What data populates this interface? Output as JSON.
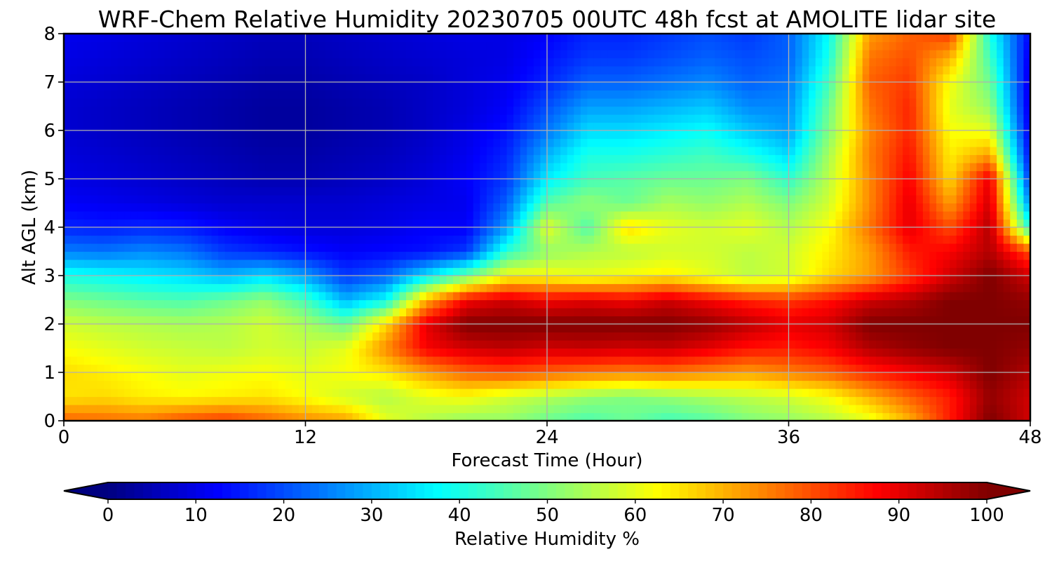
{
  "chart_data": {
    "type": "heatmap",
    "title": "WRF-Chem Relative Humidity 20230705 00UTC 48h fcst at AMOLITE lidar site",
    "xlabel": "Forecast Time (Hour)",
    "ylabel": "Alt AGL (km)",
    "xlim": [
      0,
      48
    ],
    "ylim": [
      0,
      8
    ],
    "x_ticks": [
      0,
      12,
      24,
      36,
      48
    ],
    "y_ticks": [
      0,
      1,
      2,
      3,
      4,
      5,
      6,
      7,
      8
    ],
    "grid": true,
    "x": [
      0,
      2,
      4,
      6,
      8,
      10,
      12,
      14,
      16,
      18,
      20,
      22,
      24,
      26,
      28,
      30,
      32,
      34,
      36,
      38,
      40,
      42,
      44,
      46,
      48
    ],
    "y": [
      0,
      0.5,
      1,
      1.5,
      2,
      2.5,
      3,
      3.5,
      4,
      4.5,
      5,
      5.5,
      6,
      6.5,
      7,
      7.5,
      8
    ],
    "z": [
      [
        78,
        77,
        76,
        80,
        82,
        78,
        74,
        72,
        60,
        55,
        52,
        52,
        48,
        45,
        48,
        44,
        46,
        50,
        52,
        55,
        60,
        70,
        85,
        100,
        92
      ],
      [
        65,
        66,
        64,
        63,
        64,
        65,
        62,
        58,
        55,
        60,
        62,
        58,
        55,
        52,
        50,
        52,
        54,
        56,
        58,
        62,
        70,
        78,
        85,
        98,
        92
      ],
      [
        66,
        64,
        62,
        60,
        61,
        62,
        60,
        62,
        65,
        72,
        78,
        80,
        78,
        76,
        75,
        76,
        74,
        72,
        75,
        78,
        84,
        88,
        92,
        100,
        95
      ],
      [
        62,
        60,
        58,
        57,
        56,
        58,
        57,
        60,
        74,
        88,
        92,
        94,
        92,
        93,
        92,
        93,
        90,
        86,
        85,
        88,
        95,
        98,
        100,
        100,
        98
      ],
      [
        58,
        56,
        55,
        54,
        55,
        58,
        54,
        48,
        66,
        90,
        100,
        100,
        100,
        100,
        100,
        100,
        98,
        94,
        90,
        92,
        100,
        100,
        100,
        100,
        100
      ],
      [
        50,
        48,
        46,
        45,
        48,
        52,
        44,
        30,
        38,
        70,
        88,
        92,
        88,
        90,
        88,
        92,
        88,
        84,
        82,
        86,
        92,
        95,
        100,
        100,
        98
      ],
      [
        40,
        38,
        36,
        34,
        30,
        34,
        28,
        18,
        22,
        35,
        48,
        62,
        62,
        60,
        62,
        64,
        60,
        56,
        58,
        66,
        72,
        82,
        92,
        100,
        92
      ],
      [
        25,
        24,
        26,
        24,
        18,
        16,
        14,
        12,
        13,
        14,
        18,
        42,
        52,
        55,
        56,
        58,
        58,
        56,
        58,
        64,
        72,
        85,
        88,
        95,
        80
      ],
      [
        16,
        15,
        16,
        15,
        12,
        10,
        9,
        9,
        10,
        12,
        12,
        28,
        60,
        45,
        66,
        60,
        58,
        60,
        55,
        62,
        76,
        90,
        80,
        95,
        40
      ],
      [
        12,
        11,
        10,
        9,
        8,
        8,
        8,
        8,
        9,
        10,
        11,
        22,
        46,
        52,
        48,
        54,
        52,
        55,
        50,
        58,
        74,
        90,
        72,
        92,
        25
      ],
      [
        10,
        9,
        8,
        7,
        6,
        5,
        5,
        6,
        7,
        9,
        12,
        18,
        36,
        44,
        46,
        48,
        48,
        50,
        42,
        56,
        74,
        88,
        66,
        90,
        16
      ],
      [
        9,
        8,
        7,
        6,
        5,
        4,
        4,
        5,
        6,
        8,
        11,
        16,
        30,
        40,
        40,
        42,
        44,
        40,
        34,
        54,
        75,
        86,
        64,
        72,
        12
      ],
      [
        8,
        7,
        6,
        5,
        4,
        3,
        3,
        4,
        5,
        7,
        10,
        14,
        24,
        34,
        34,
        36,
        38,
        32,
        28,
        50,
        74,
        84,
        62,
        60,
        10
      ],
      [
        8,
        7,
        6,
        5,
        4,
        3,
        3,
        4,
        5,
        7,
        9,
        12,
        20,
        28,
        28,
        30,
        32,
        26,
        26,
        48,
        76,
        84,
        60,
        52,
        9
      ],
      [
        9,
        8,
        7,
        6,
        5,
        4,
        4,
        5,
        6,
        7,
        9,
        11,
        16,
        22,
        22,
        24,
        26,
        22,
        24,
        44,
        78,
        82,
        62,
        48,
        9
      ],
      [
        10,
        9,
        8,
        7,
        6,
        5,
        5,
        6,
        7,
        8,
        9,
        10,
        14,
        18,
        18,
        20,
        22,
        20,
        22,
        40,
        76,
        80,
        70,
        44,
        10
      ],
      [
        11,
        10,
        9,
        8,
        7,
        6,
        6,
        7,
        8,
        9,
        10,
        10,
        12,
        16,
        16,
        18,
        20,
        18,
        22,
        38,
        72,
        78,
        82,
        40,
        12
      ]
    ],
    "colorbar": {
      "label": "Relative Humidity %",
      "min": 0,
      "max": 100,
      "ticks": [
        0,
        10,
        20,
        30,
        40,
        50,
        60,
        70,
        80,
        90,
        100
      ],
      "extend": "both",
      "colormap": "jet"
    }
  }
}
